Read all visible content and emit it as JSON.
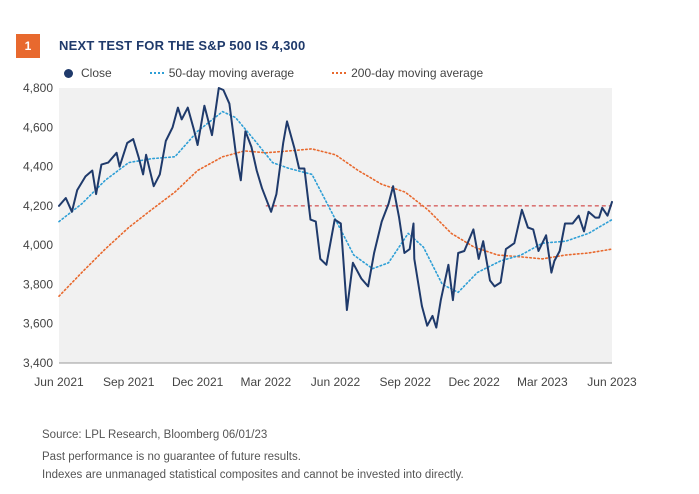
{
  "figure": {
    "number": "1",
    "title": "NEXT TEST FOR THE S&P 500 IS 4,300"
  },
  "legend": {
    "close": "Close",
    "ma50": "50-day moving average",
    "ma200": "200-day moving average"
  },
  "footer": {
    "source": "Source: LPL Research, Bloomberg  06/01/23",
    "disclaimer1": "Past performance is no guarantee of future results.",
    "disclaimer2": "Indexes are unmanaged statistical composites and cannot be invested into directly."
  },
  "colors": {
    "close": "#1f3a6b",
    "ma50": "#2e9fd6",
    "ma200": "#e8692e",
    "reference": "#cc2a2a",
    "plot_bg": "#f1f1f1"
  },
  "chart_data": {
    "type": "line",
    "title": "NEXT TEST FOR THE S&P 500 IS 4,300",
    "xlabel": "",
    "ylabel": "",
    "ylim": [
      3400,
      4800
    ],
    "x_range": [
      "2021-06-01",
      "2023-06-01"
    ],
    "yticks": [
      3400,
      3600,
      3800,
      4000,
      4200,
      4400,
      4600,
      4800
    ],
    "ytick_labels": [
      "3,400",
      "3,600",
      "3,800",
      "4,000",
      "4,200",
      "4,400",
      "4,600",
      "4,800"
    ],
    "xticks": [
      {
        "date": "2021-06-01",
        "label": "Jun 2021"
      },
      {
        "date": "2021-09-01",
        "label": "Sep 2021"
      },
      {
        "date": "2021-12-01",
        "label": "Dec 2021"
      },
      {
        "date": "2022-03-01",
        "label": "Mar 2022"
      },
      {
        "date": "2022-06-01",
        "label": "Jun 2022"
      },
      {
        "date": "2022-09-01",
        "label": "Sep 2022"
      },
      {
        "date": "2022-12-01",
        "label": "Dec 2022"
      },
      {
        "date": "2023-03-01",
        "label": "Mar 2023"
      },
      {
        "date": "2023-06-01",
        "label": "Jun 2023"
      }
    ],
    "reference_line": {
      "y": 4200,
      "x_start": "2022-03-01",
      "x_end": "2023-06-01",
      "style": "dashed"
    },
    "grid": false,
    "legend_position": "top",
    "series": [
      {
        "name": "Close",
        "points": [
          [
            "2021-06-01",
            4200
          ],
          [
            "2021-06-10",
            4240
          ],
          [
            "2021-06-18",
            4170
          ],
          [
            "2021-06-25",
            4280
          ],
          [
            "2021-07-06",
            4350
          ],
          [
            "2021-07-15",
            4380
          ],
          [
            "2021-07-20",
            4260
          ],
          [
            "2021-07-27",
            4410
          ],
          [
            "2021-08-05",
            4420
          ],
          [
            "2021-08-16",
            4470
          ],
          [
            "2021-08-20",
            4400
          ],
          [
            "2021-08-30",
            4520
          ],
          [
            "2021-09-07",
            4540
          ],
          [
            "2021-09-14",
            4450
          ],
          [
            "2021-09-20",
            4360
          ],
          [
            "2021-09-24",
            4460
          ],
          [
            "2021-10-04",
            4300
          ],
          [
            "2021-10-12",
            4360
          ],
          [
            "2021-10-20",
            4530
          ],
          [
            "2021-10-29",
            4600
          ],
          [
            "2021-11-05",
            4700
          ],
          [
            "2021-11-10",
            4640
          ],
          [
            "2021-11-18",
            4700
          ],
          [
            "2021-11-26",
            4590
          ],
          [
            "2021-12-01",
            4510
          ],
          [
            "2021-12-10",
            4710
          ],
          [
            "2021-12-20",
            4560
          ],
          [
            "2021-12-29",
            4800
          ],
          [
            "2022-01-04",
            4790
          ],
          [
            "2022-01-12",
            4720
          ],
          [
            "2022-01-20",
            4480
          ],
          [
            "2022-01-27",
            4330
          ],
          [
            "2022-02-02",
            4580
          ],
          [
            "2022-02-10",
            4500
          ],
          [
            "2022-02-17",
            4380
          ],
          [
            "2022-02-24",
            4290
          ],
          [
            "2022-03-08",
            4170
          ],
          [
            "2022-03-15",
            4260
          ],
          [
            "2022-03-24",
            4520
          ],
          [
            "2022-03-29",
            4630
          ],
          [
            "2022-04-08",
            4490
          ],
          [
            "2022-04-14",
            4390
          ],
          [
            "2022-04-21",
            4390
          ],
          [
            "2022-04-29",
            4130
          ],
          [
            "2022-05-06",
            4120
          ],
          [
            "2022-05-12",
            3930
          ],
          [
            "2022-05-20",
            3900
          ],
          [
            "2022-05-31",
            4130
          ],
          [
            "2022-06-08",
            4110
          ],
          [
            "2022-06-16",
            3670
          ],
          [
            "2022-06-24",
            3910
          ],
          [
            "2022-07-05",
            3830
          ],
          [
            "2022-07-14",
            3790
          ],
          [
            "2022-07-22",
            3960
          ],
          [
            "2022-08-01",
            4120
          ],
          [
            "2022-08-10",
            4210
          ],
          [
            "2022-08-16",
            4300
          ],
          [
            "2022-08-24",
            4140
          ],
          [
            "2022-08-31",
            3960
          ],
          [
            "2022-09-07",
            3980
          ],
          [
            "2022-09-12",
            4110
          ],
          [
            "2022-09-13",
            3930
          ],
          [
            "2022-09-23",
            3690
          ],
          [
            "2022-09-30",
            3590
          ],
          [
            "2022-10-07",
            3640
          ],
          [
            "2022-10-12",
            3580
          ],
          [
            "2022-10-18",
            3720
          ],
          [
            "2022-10-28",
            3900
          ],
          [
            "2022-11-03",
            3720
          ],
          [
            "2022-11-10",
            3960
          ],
          [
            "2022-11-18",
            3970
          ],
          [
            "2022-11-30",
            4080
          ],
          [
            "2022-12-07",
            3930
          ],
          [
            "2022-12-13",
            4020
          ],
          [
            "2022-12-22",
            3820
          ],
          [
            "2022-12-28",
            3790
          ],
          [
            "2023-01-05",
            3810
          ],
          [
            "2023-01-12",
            3980
          ],
          [
            "2023-01-23",
            4010
          ],
          [
            "2023-02-02",
            4180
          ],
          [
            "2023-02-10",
            4090
          ],
          [
            "2023-02-17",
            4080
          ],
          [
            "2023-02-24",
            3970
          ],
          [
            "2023-03-06",
            4050
          ],
          [
            "2023-03-13",
            3860
          ],
          [
            "2023-03-17",
            3920
          ],
          [
            "2023-03-24",
            3970
          ],
          [
            "2023-03-31",
            4110
          ],
          [
            "2023-04-10",
            4110
          ],
          [
            "2023-04-18",
            4150
          ],
          [
            "2023-04-25",
            4070
          ],
          [
            "2023-05-01",
            4170
          ],
          [
            "2023-05-10",
            4140
          ],
          [
            "2023-05-15",
            4140
          ],
          [
            "2023-05-19",
            4190
          ],
          [
            "2023-05-26",
            4150
          ],
          [
            "2023-06-01",
            4220
          ]
        ]
      },
      {
        "name": "50-day moving average",
        "points": [
          [
            "2021-06-01",
            4120
          ],
          [
            "2021-07-01",
            4210
          ],
          [
            "2021-08-01",
            4330
          ],
          [
            "2021-09-01",
            4420
          ],
          [
            "2021-10-01",
            4440
          ],
          [
            "2021-11-01",
            4450
          ],
          [
            "2021-12-01",
            4580
          ],
          [
            "2022-01-03",
            4680
          ],
          [
            "2022-01-20",
            4650
          ],
          [
            "2022-02-15",
            4530
          ],
          [
            "2022-03-10",
            4420
          ],
          [
            "2022-04-01",
            4390
          ],
          [
            "2022-05-01",
            4360
          ],
          [
            "2022-06-01",
            4130
          ],
          [
            "2022-06-25",
            3950
          ],
          [
            "2022-07-20",
            3880
          ],
          [
            "2022-08-10",
            3910
          ],
          [
            "2022-09-05",
            4060
          ],
          [
            "2022-09-25",
            3990
          ],
          [
            "2022-10-20",
            3800
          ],
          [
            "2022-11-10",
            3760
          ],
          [
            "2022-12-05",
            3860
          ],
          [
            "2023-01-05",
            3920
          ],
          [
            "2023-02-01",
            3950
          ],
          [
            "2023-03-01",
            4010
          ],
          [
            "2023-04-01",
            4020
          ],
          [
            "2023-05-01",
            4060
          ],
          [
            "2023-06-01",
            4130
          ]
        ]
      },
      {
        "name": "200-day moving average",
        "points": [
          [
            "2021-06-01",
            3740
          ],
          [
            "2021-07-01",
            3860
          ],
          [
            "2021-08-01",
            3980
          ],
          [
            "2021-09-01",
            4090
          ],
          [
            "2021-10-01",
            4180
          ],
          [
            "2021-11-01",
            4270
          ],
          [
            "2021-12-01",
            4380
          ],
          [
            "2022-01-03",
            4450
          ],
          [
            "2022-02-01",
            4480
          ],
          [
            "2022-03-01",
            4470
          ],
          [
            "2022-04-01",
            4480
          ],
          [
            "2022-05-01",
            4490
          ],
          [
            "2022-06-01",
            4460
          ],
          [
            "2022-07-01",
            4380
          ],
          [
            "2022-08-01",
            4310
          ],
          [
            "2022-09-01",
            4270
          ],
          [
            "2022-10-01",
            4180
          ],
          [
            "2022-11-01",
            4060
          ],
          [
            "2022-12-01",
            3990
          ],
          [
            "2023-01-01",
            3950
          ],
          [
            "2023-02-01",
            3940
          ],
          [
            "2023-03-01",
            3930
          ],
          [
            "2023-04-01",
            3950
          ],
          [
            "2023-05-01",
            3960
          ],
          [
            "2023-06-01",
            3980
          ]
        ]
      }
    ]
  }
}
